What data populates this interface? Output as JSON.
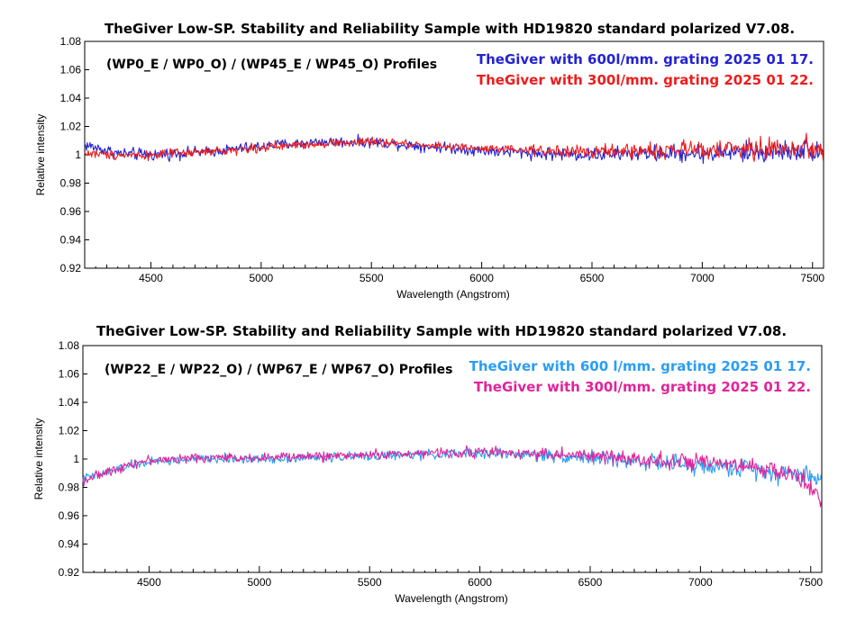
{
  "chart_data": [
    {
      "type": "line",
      "title": "TheGiver Low-SP. Stability and Reliability Sample with HD19820 standard polarized  V7.08.",
      "annotation": "(WP0_E / WP0_O) / (WP45_E  / WP45_O) Profiles",
      "xlabel": "Wavelength (Angstrom)",
      "ylabel": "Relative intensity",
      "xlim": [
        4200,
        7550
      ],
      "ylim": [
        0.92,
        1.08
      ],
      "xticks": [
        4500,
        5000,
        5500,
        6000,
        6500,
        7000,
        7500
      ],
      "yticks": [
        0.92,
        0.94,
        0.96,
        0.98,
        1,
        1.02,
        1.04,
        1.06,
        1.08
      ],
      "ytick_labels": [
        "0.92",
        "0.94",
        "0.96",
        "0.98",
        "1",
        "1.02",
        "1.04",
        "1.06",
        "1.08"
      ],
      "grid": false,
      "legend_position": "top-right",
      "series": [
        {
          "name": "TheGiver with 600l/mm. grating  2025 01 17.",
          "color": "#2323d2",
          "x": [
            4200,
            4350,
            4500,
            4750,
            5000,
            5250,
            5500,
            5750,
            6000,
            6250,
            6500,
            6750,
            7000,
            7250,
            7550
          ],
          "y": [
            1.007,
            1.001,
            1.0,
            1.002,
            1.006,
            1.009,
            1.009,
            1.006,
            1.003,
            1.001,
            1.0,
            1.001,
            1.001,
            1.002,
            1.004
          ],
          "noise": [
            0.004,
            0.004,
            0.004,
            0.0035,
            0.0035,
            0.0035,
            0.0035,
            0.0035,
            0.0035,
            0.004,
            0.0045,
            0.005,
            0.006,
            0.007,
            0.007
          ]
        },
        {
          "name": "TheGiver with 300l/mm. grating  2025 01 22.",
          "color": "#ee1c1c",
          "x": [
            4200,
            4350,
            4500,
            4750,
            5000,
            5250,
            5500,
            5750,
            6000,
            6250,
            6500,
            6750,
            7000,
            7250,
            7550
          ],
          "y": [
            1.001,
            1.0,
            1.0,
            1.002,
            1.005,
            1.008,
            1.009,
            1.007,
            1.004,
            1.003,
            1.002,
            1.003,
            1.004,
            1.004,
            1.005
          ],
          "noise": [
            0.003,
            0.003,
            0.003,
            0.003,
            0.003,
            0.003,
            0.003,
            0.003,
            0.003,
            0.0035,
            0.004,
            0.005,
            0.006,
            0.0075,
            0.008
          ]
        }
      ]
    },
    {
      "type": "line",
      "title": "TheGiver Low-SP. Stability and Reliability Sample with HD19820 standard polarized  V7.08.",
      "annotation": "(WP22_E / WP22_O) / (WP67_E  / WP67_O) Profiles",
      "xlabel": "Wavelength (Angstrom)",
      "ylabel": "Relative intensity",
      "xlim": [
        4200,
        7550
      ],
      "ylim": [
        0.92,
        1.08
      ],
      "xticks": [
        4500,
        5000,
        5500,
        6000,
        6500,
        7000,
        7500
      ],
      "yticks": [
        0.92,
        0.94,
        0.96,
        0.98,
        1,
        1.02,
        1.04,
        1.06,
        1.08
      ],
      "ytick_labels": [
        "0.92",
        "0.94",
        "0.96",
        "0.98",
        "1",
        "1.02",
        "1.04",
        "1.06",
        "1.08"
      ],
      "grid": false,
      "legend_position": "top-right",
      "series": [
        {
          "name": "TheGiver with 600 l/mm. grating  2025 01 17.",
          "color": "#2a9df4",
          "x": [
            4200,
            4300,
            4400,
            4500,
            4750,
            5000,
            5250,
            5500,
            5750,
            6000,
            6250,
            6500,
            6750,
            7000,
            7250,
            7400,
            7550
          ],
          "y": [
            0.986,
            0.99,
            0.995,
            0.998,
            1.0,
            1.0,
            1.001,
            1.002,
            1.003,
            1.004,
            1.003,
            1.001,
            0.998,
            0.995,
            0.993,
            0.99,
            0.987
          ],
          "noise": [
            0.003,
            0.003,
            0.003,
            0.003,
            0.003,
            0.003,
            0.003,
            0.003,
            0.003,
            0.0035,
            0.004,
            0.0045,
            0.005,
            0.006,
            0.006,
            0.007,
            0.007
          ]
        },
        {
          "name": "TheGiver  with 300l/mm. grating  2025 01 22.",
          "color": "#e0249a",
          "x": [
            4200,
            4300,
            4400,
            4500,
            4750,
            5000,
            5250,
            5500,
            5750,
            6000,
            6250,
            6500,
            6750,
            7000,
            7250,
            7400,
            7550
          ],
          "y": [
            0.985,
            0.99,
            0.996,
            0.999,
            1.001,
            1.001,
            1.002,
            1.003,
            1.004,
            1.005,
            1.004,
            1.002,
            1.0,
            0.997,
            0.994,
            0.99,
            0.975
          ],
          "noise": [
            0.003,
            0.003,
            0.003,
            0.003,
            0.003,
            0.003,
            0.003,
            0.003,
            0.003,
            0.0035,
            0.004,
            0.0045,
            0.005,
            0.0055,
            0.006,
            0.007,
            0.008
          ]
        }
      ]
    }
  ]
}
